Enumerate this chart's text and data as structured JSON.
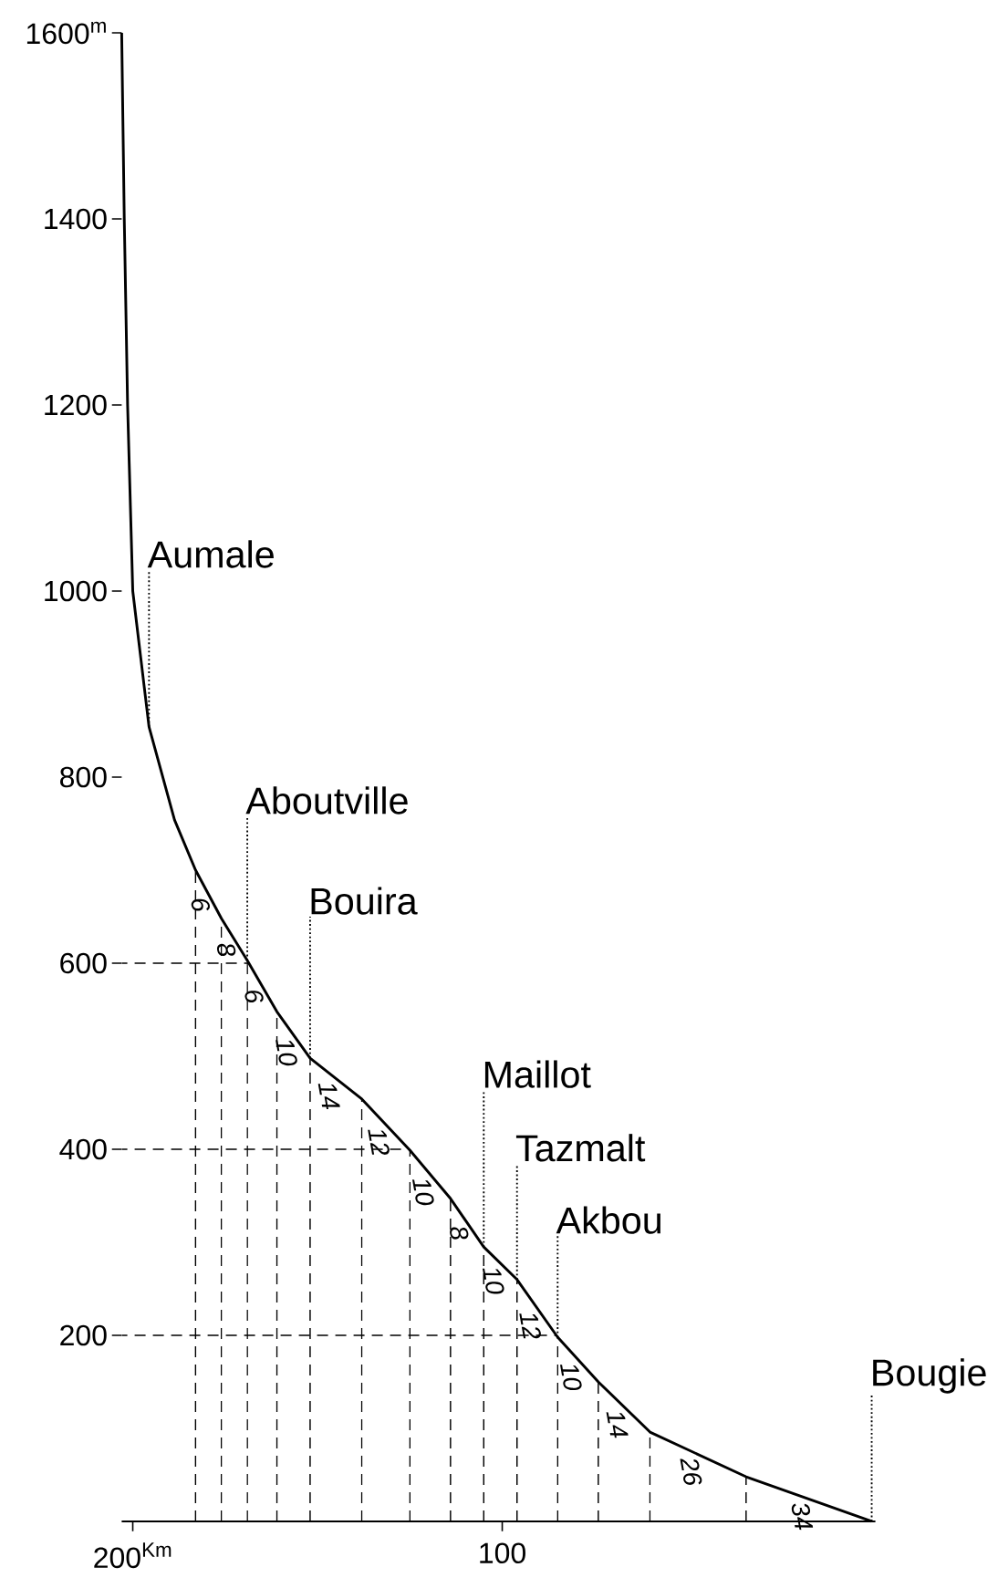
{
  "chart_data": {
    "type": "line",
    "xlim": [
      203,
      -1
    ],
    "ylim": [
      0,
      1600
    ],
    "xticks": [
      {
        "value": 200,
        "label": "200$^{Km}$"
      },
      100
    ],
    "yticks": [
      200,
      400,
      600,
      800,
      1000,
      1200,
      1400,
      {
        "value": 1600,
        "label": "1600$^{m}$"
      }
    ],
    "series": [
      {
        "color": "#000000",
        "x": [
          203,
          202.3,
          201.4,
          200,
          195.6,
          188.7,
          183,
          176,
          169,
          161,
          152,
          138,
          125,
          114,
          105,
          96,
          85,
          74,
          60,
          34,
          0
        ],
        "values": [
          1600,
          1400,
          1200,
          1000,
          854,
          754,
          700,
          648,
          603,
          548,
          498,
          454,
          399,
          347,
          295,
          260,
          198,
          150,
          96,
          48,
          0
        ]
      }
    ],
    "ref_lines": [
      {
        "axis": "y",
        "value": 600,
        "line_style": "dashed"
      },
      {
        "axis": "y",
        "value": 400,
        "line_style": "dashed"
      },
      {
        "axis": "y",
        "value": 200,
        "line_style": "dashed"
      },
      {
        "axis": "x",
        "value": 183,
        "line_style": "dashed"
      },
      {
        "axis": "x",
        "value": 176,
        "line_style": "dashed"
      },
      {
        "axis": "x",
        "value": 169,
        "line_style": "dashed"
      },
      {
        "axis": "x",
        "value": 161,
        "line_style": "dashed"
      },
      {
        "axis": "x",
        "value": 152,
        "line_style": "dashed"
      },
      {
        "axis": "x",
        "value": 138,
        "line_style": "dashed"
      },
      {
        "axis": "x",
        "value": 125,
        "line_style": "dashed"
      },
      {
        "axis": "x",
        "value": 114,
        "line_style": "dashed"
      },
      {
        "axis": "x",
        "value": 105,
        "line_style": "dashed"
      },
      {
        "axis": "x",
        "value": 96,
        "line_style": "dashed"
      },
      {
        "axis": "x",
        "value": 85,
        "line_style": "dashed"
      },
      {
        "axis": "x",
        "value": 74,
        "line_style": "dashed"
      },
      {
        "axis": "x",
        "value": 60,
        "line_style": "dashed"
      },
      {
        "axis": "x",
        "value": 34,
        "line_style": "dashed"
      }
    ],
    "annotations": [
      {
        "text": "Aumale",
        "x": 195.6,
        "y": 854
      },
      {
        "text": "Aboutville",
        "x": 169,
        "y": 603
      },
      {
        "text": "Bouira",
        "x": 152,
        "y": 498
      },
      {
        "text": "Maillot",
        "x": 105,
        "y": 295
      },
      {
        "text": "Tazmalt",
        "x": 96,
        "y": 260
      },
      {
        "text": "Akbou",
        "x": 85,
        "y": 198
      },
      {
        "text": "Bougie",
        "x": 0,
        "y": 0
      },
      "6",
      "8",
      "6",
      "10",
      "14",
      "12",
      "10",
      "8",
      "10",
      "12",
      "10",
      "14",
      "26",
      "34"
    ]
  }
}
